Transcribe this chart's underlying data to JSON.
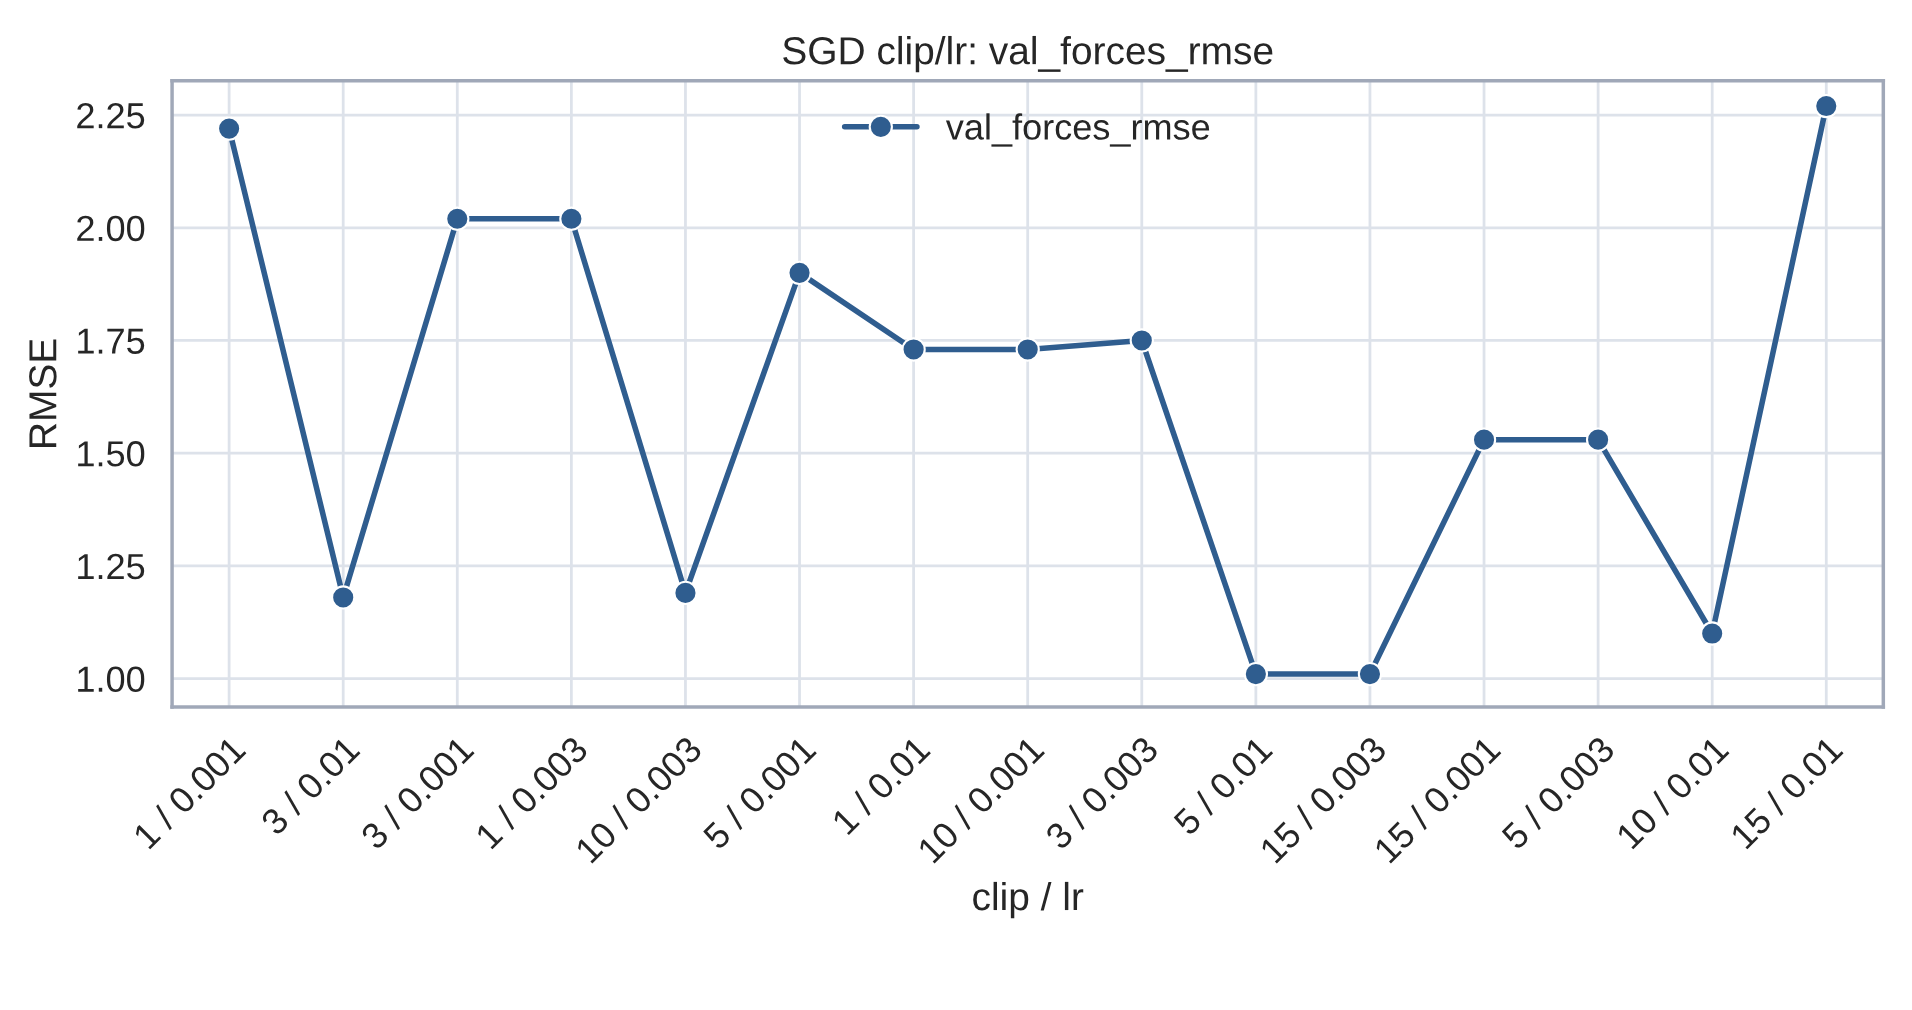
{
  "chart_data": {
    "type": "line",
    "title": "SGD clip/lr: val_forces_rmse",
    "xlabel": "clip / lr",
    "ylabel": "RMSE",
    "categories": [
      "1 / 0.001",
      "3 / 0.01",
      "3 / 0.001",
      "1 / 0.003",
      "10 / 0.003",
      "5 / 0.001",
      "1 / 0.01",
      "10 / 0.001",
      "3 / 0.003",
      "5 / 0.01",
      "15 / 0.003",
      "15 / 0.001",
      "5 / 0.003",
      "10 / 0.01",
      "15 / 0.01"
    ],
    "series": [
      {
        "name": "val_forces_rmse",
        "color": "#2f5d8f",
        "values": [
          2.22,
          1.18,
          2.02,
          2.02,
          1.19,
          1.9,
          1.73,
          1.73,
          1.75,
          1.01,
          1.01,
          1.53,
          1.53,
          1.1,
          2.27
        ]
      }
    ],
    "ylim": [
      0.937,
      2.326
    ],
    "yticks": [
      {
        "value": 1,
        "label": "1.00"
      },
      1.25,
      {
        "value": 1.5,
        "label": "1.50"
      },
      1.75,
      {
        "value": 2,
        "label": "2.00"
      },
      2.25
    ],
    "grid": true,
    "legend": "top",
    "marker": "circle",
    "line_style": "solid"
  }
}
